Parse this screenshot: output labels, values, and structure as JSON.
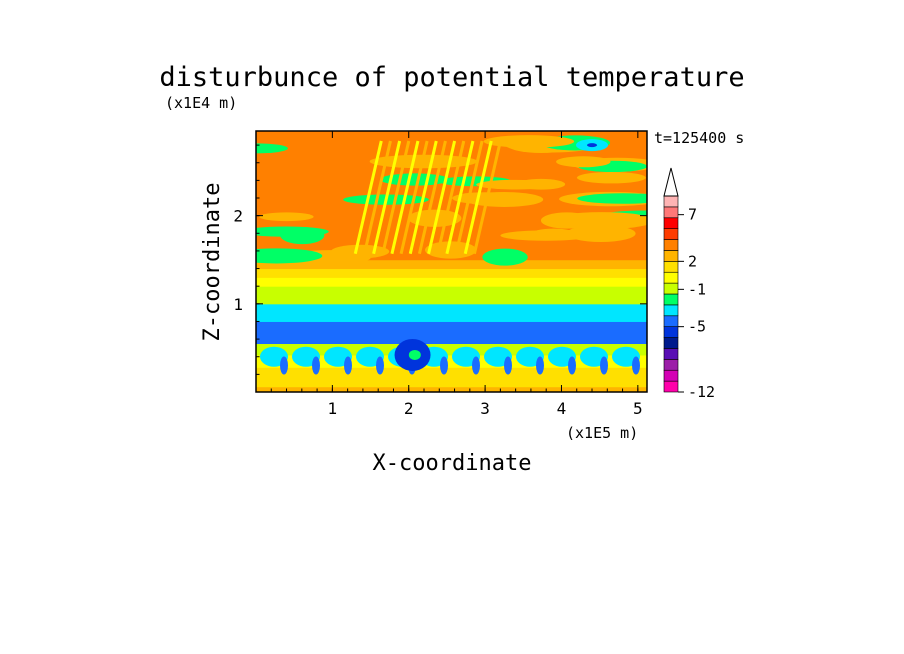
{
  "chart_data": {
    "type": "heatmap",
    "title": "disturbunce of potential temperature",
    "xlabel": "X-coordinate",
    "ylabel": "Z-coordinate",
    "x_unit": "(x1E5 m)",
    "y_unit": "(x1E4 m)",
    "time_label": "t=125400 s",
    "xlim": [
      0,
      5.12
    ],
    "ylim": [
      0,
      2.96
    ],
    "x_ticks": [
      "1",
      "2",
      "3",
      "4",
      "5"
    ],
    "y_ticks": [
      "1",
      "2"
    ],
    "x_tick_values": [
      1,
      2,
      3,
      4,
      5
    ],
    "y_tick_values": [
      1,
      2
    ],
    "colorbar": {
      "levels": [
        -12,
        -11,
        -10,
        -9,
        -8,
        -7,
        -6,
        -5,
        -4,
        -3,
        -2,
        -1,
        0,
        1,
        2,
        3,
        4,
        5,
        6,
        7,
        8,
        9
      ],
      "labels": [
        "-12",
        "-5",
        "-1",
        "2",
        "7"
      ],
      "label_values": [
        -12,
        -5,
        -1,
        2,
        7
      ],
      "colors": [
        "#ff00aa",
        "#d400b4",
        "#9c1ea8",
        "#5a0fb4",
        "#001a8c",
        "#0034dc",
        "#1a6cff",
        "#00e6ff",
        "#00ff66",
        "#c8ff00",
        "#ffff00",
        "#ffe000",
        "#ffb400",
        "#ff8000",
        "#ff3c00",
        "#ff0000",
        "#ff7878",
        "#ffb4b4"
      ],
      "extend": "max"
    },
    "bands": [
      {
        "z": [
          0.0,
          0.06
        ],
        "value": 0.5
      },
      {
        "z": [
          0.06,
          0.14
        ],
        "value": -0.5
      },
      {
        "z": [
          0.14,
          0.28
        ],
        "value": -1.0
      },
      {
        "z": [
          0.28,
          0.42
        ],
        "value": -2.0
      },
      {
        "z": [
          0.42,
          0.55
        ],
        "value": -3.0
      },
      {
        "z": [
          0.55,
          0.8
        ],
        "value": -5.5
      },
      {
        "z": [
          0.8,
          1.0
        ],
        "value": -4.5
      },
      {
        "z": [
          1.0,
          1.2
        ],
        "value": -3.0
      },
      {
        "z": [
          1.2,
          1.3
        ],
        "value": -2.0
      },
      {
        "z": [
          1.3,
          1.4
        ],
        "value": -1.0
      },
      {
        "z": [
          1.4,
          1.5
        ],
        "value": 0.0
      },
      {
        "z": [
          1.5,
          2.96
        ],
        "value": 1.5
      }
    ]
  }
}
